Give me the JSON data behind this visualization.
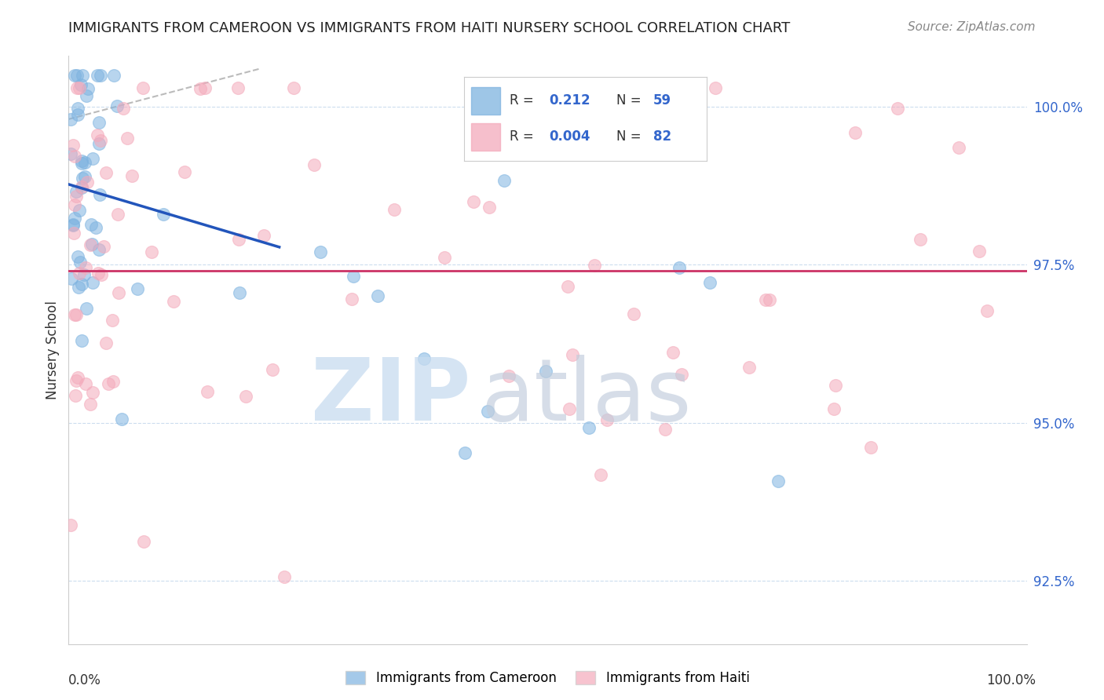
{
  "title": "IMMIGRANTS FROM CAMEROON VS IMMIGRANTS FROM HAITI NURSERY SCHOOL CORRELATION CHART",
  "source": "Source: ZipAtlas.com",
  "ylabel": "Nursery School",
  "ylabel_right_values": [
    100.0,
    97.5,
    95.0,
    92.5
  ],
  "xlim": [
    0.0,
    100.0
  ],
  "ylim": [
    91.5,
    100.8
  ],
  "blue_color": "#7EB3E0",
  "pink_color": "#F4AABB",
  "trend_blue": "#2255BB",
  "trend_pink": "#CC3366",
  "ref_line_color": "#BBBBBB",
  "grid_color": "#DDDDDD",
  "grid_line_color": "#CCDDEE",
  "r_value_color": "#3366CC",
  "n_value_color": "#3366CC",
  "legend_border_color": "#CCCCCC",
  "watermark_zip_color": "#C8DCF0",
  "watermark_atlas_color": "#C0CCDC"
}
